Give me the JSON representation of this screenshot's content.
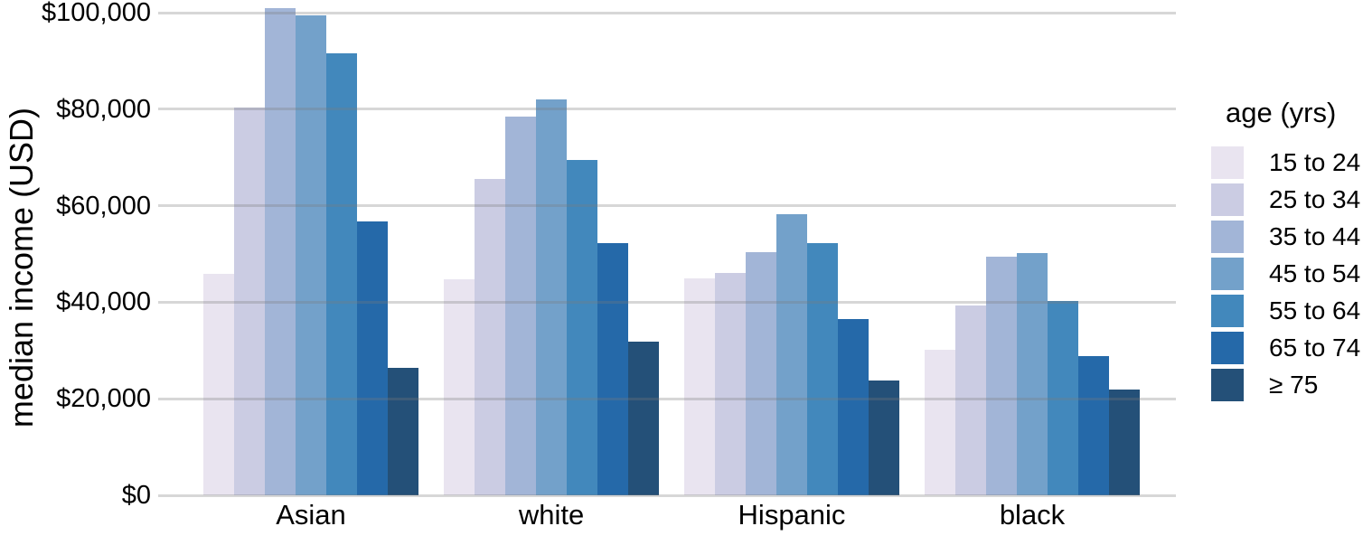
{
  "chart_data": {
    "type": "bar",
    "title": "",
    "xlabel": "",
    "ylabel": "median income (USD)",
    "categories": [
      "Asian",
      "white",
      "Hispanic",
      "black"
    ],
    "legend_title": "age (yrs)",
    "legend_position": "right",
    "grid": "horizontal",
    "ylim": [
      0,
      100000
    ],
    "yticks": [
      {
        "label": "$0",
        "value": 0
      },
      {
        "label": "$20,000",
        "value": 20000
      },
      {
        "label": "$40,000",
        "value": 40000
      },
      {
        "label": "$60,000",
        "value": 60000
      },
      {
        "label": "$80,000",
        "value": 80000
      },
      {
        "label": "$100,000",
        "value": 100000
      }
    ],
    "series": [
      {
        "name": "15 to 24",
        "color": "#E9E4F0",
        "values": [
          45800,
          44700,
          45000,
          30100
        ]
      },
      {
        "name": "25 to 34",
        "color": "#CBCCE3",
        "values": [
          80300,
          65600,
          46100,
          39300
        ]
      },
      {
        "name": "35 to 44",
        "color": "#A2B5D7",
        "values": [
          101000,
          78400,
          50300,
          49400
        ]
      },
      {
        "name": "45 to 54",
        "color": "#73A1CA",
        "values": [
          99500,
          82000,
          58200,
          50200
        ]
      },
      {
        "name": "55 to 64",
        "color": "#4288BC",
        "values": [
          91500,
          69500,
          52300,
          40300
        ]
      },
      {
        "name": "65 to 74",
        "color": "#2569A9",
        "values": [
          56700,
          52200,
          36600,
          28800
        ]
      },
      {
        "name": "≥ 75",
        "color": "#245078",
        "values": [
          26400,
          31900,
          23800,
          22000
        ]
      }
    ],
    "colors": {
      "background": "#FFFFFF",
      "gridline": "#D4D4D4",
      "text": "#000000"
    }
  }
}
